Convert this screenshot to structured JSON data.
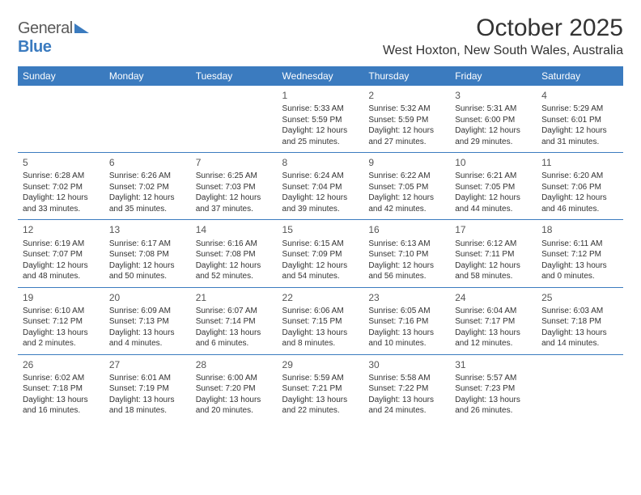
{
  "logo": {
    "text_gray": "General",
    "text_blue": "Blue"
  },
  "title": "October 2025",
  "location": "West Hoxton, New South Wales, Australia",
  "day_names": [
    "Sunday",
    "Monday",
    "Tuesday",
    "Wednesday",
    "Thursday",
    "Friday",
    "Saturday"
  ],
  "colors": {
    "header_bg": "#3b7bbf",
    "header_text": "#ffffff",
    "row_border": "#3b7bbf",
    "text": "#333333",
    "background": "#ffffff"
  },
  "typography": {
    "title_fontsize": 30,
    "location_fontsize": 16,
    "dayheader_fontsize": 12,
    "cell_fontsize": 10
  },
  "weeks": [
    [
      null,
      null,
      null,
      {
        "d": "1",
        "sr": "5:33 AM",
        "ss": "5:59 PM",
        "dl1": "12 hours",
        "dl2": "and 25 minutes."
      },
      {
        "d": "2",
        "sr": "5:32 AM",
        "ss": "5:59 PM",
        "dl1": "12 hours",
        "dl2": "and 27 minutes."
      },
      {
        "d": "3",
        "sr": "5:31 AM",
        "ss": "6:00 PM",
        "dl1": "12 hours",
        "dl2": "and 29 minutes."
      },
      {
        "d": "4",
        "sr": "5:29 AM",
        "ss": "6:01 PM",
        "dl1": "12 hours",
        "dl2": "and 31 minutes."
      }
    ],
    [
      {
        "d": "5",
        "sr": "6:28 AM",
        "ss": "7:02 PM",
        "dl1": "12 hours",
        "dl2": "and 33 minutes."
      },
      {
        "d": "6",
        "sr": "6:26 AM",
        "ss": "7:02 PM",
        "dl1": "12 hours",
        "dl2": "and 35 minutes."
      },
      {
        "d": "7",
        "sr": "6:25 AM",
        "ss": "7:03 PM",
        "dl1": "12 hours",
        "dl2": "and 37 minutes."
      },
      {
        "d": "8",
        "sr": "6:24 AM",
        "ss": "7:04 PM",
        "dl1": "12 hours",
        "dl2": "and 39 minutes."
      },
      {
        "d": "9",
        "sr": "6:22 AM",
        "ss": "7:05 PM",
        "dl1": "12 hours",
        "dl2": "and 42 minutes."
      },
      {
        "d": "10",
        "sr": "6:21 AM",
        "ss": "7:05 PM",
        "dl1": "12 hours",
        "dl2": "and 44 minutes."
      },
      {
        "d": "11",
        "sr": "6:20 AM",
        "ss": "7:06 PM",
        "dl1": "12 hours",
        "dl2": "and 46 minutes."
      }
    ],
    [
      {
        "d": "12",
        "sr": "6:19 AM",
        "ss": "7:07 PM",
        "dl1": "12 hours",
        "dl2": "and 48 minutes."
      },
      {
        "d": "13",
        "sr": "6:17 AM",
        "ss": "7:08 PM",
        "dl1": "12 hours",
        "dl2": "and 50 minutes."
      },
      {
        "d": "14",
        "sr": "6:16 AM",
        "ss": "7:08 PM",
        "dl1": "12 hours",
        "dl2": "and 52 minutes."
      },
      {
        "d": "15",
        "sr": "6:15 AM",
        "ss": "7:09 PM",
        "dl1": "12 hours",
        "dl2": "and 54 minutes."
      },
      {
        "d": "16",
        "sr": "6:13 AM",
        "ss": "7:10 PM",
        "dl1": "12 hours",
        "dl2": "and 56 minutes."
      },
      {
        "d": "17",
        "sr": "6:12 AM",
        "ss": "7:11 PM",
        "dl1": "12 hours",
        "dl2": "and 58 minutes."
      },
      {
        "d": "18",
        "sr": "6:11 AM",
        "ss": "7:12 PM",
        "dl1": "13 hours",
        "dl2": "and 0 minutes."
      }
    ],
    [
      {
        "d": "19",
        "sr": "6:10 AM",
        "ss": "7:12 PM",
        "dl1": "13 hours",
        "dl2": "and 2 minutes."
      },
      {
        "d": "20",
        "sr": "6:09 AM",
        "ss": "7:13 PM",
        "dl1": "13 hours",
        "dl2": "and 4 minutes."
      },
      {
        "d": "21",
        "sr": "6:07 AM",
        "ss": "7:14 PM",
        "dl1": "13 hours",
        "dl2": "and 6 minutes."
      },
      {
        "d": "22",
        "sr": "6:06 AM",
        "ss": "7:15 PM",
        "dl1": "13 hours",
        "dl2": "and 8 minutes."
      },
      {
        "d": "23",
        "sr": "6:05 AM",
        "ss": "7:16 PM",
        "dl1": "13 hours",
        "dl2": "and 10 minutes."
      },
      {
        "d": "24",
        "sr": "6:04 AM",
        "ss": "7:17 PM",
        "dl1": "13 hours",
        "dl2": "and 12 minutes."
      },
      {
        "d": "25",
        "sr": "6:03 AM",
        "ss": "7:18 PM",
        "dl1": "13 hours",
        "dl2": "and 14 minutes."
      }
    ],
    [
      {
        "d": "26",
        "sr": "6:02 AM",
        "ss": "7:18 PM",
        "dl1": "13 hours",
        "dl2": "and 16 minutes."
      },
      {
        "d": "27",
        "sr": "6:01 AM",
        "ss": "7:19 PM",
        "dl1": "13 hours",
        "dl2": "and 18 minutes."
      },
      {
        "d": "28",
        "sr": "6:00 AM",
        "ss": "7:20 PM",
        "dl1": "13 hours",
        "dl2": "and 20 minutes."
      },
      {
        "d": "29",
        "sr": "5:59 AM",
        "ss": "7:21 PM",
        "dl1": "13 hours",
        "dl2": "and 22 minutes."
      },
      {
        "d": "30",
        "sr": "5:58 AM",
        "ss": "7:22 PM",
        "dl1": "13 hours",
        "dl2": "and 24 minutes."
      },
      {
        "d": "31",
        "sr": "5:57 AM",
        "ss": "7:23 PM",
        "dl1": "13 hours",
        "dl2": "and 26 minutes."
      },
      null
    ]
  ],
  "labels": {
    "sunrise": "Sunrise:",
    "sunset": "Sunset:",
    "daylight": "Daylight:"
  }
}
